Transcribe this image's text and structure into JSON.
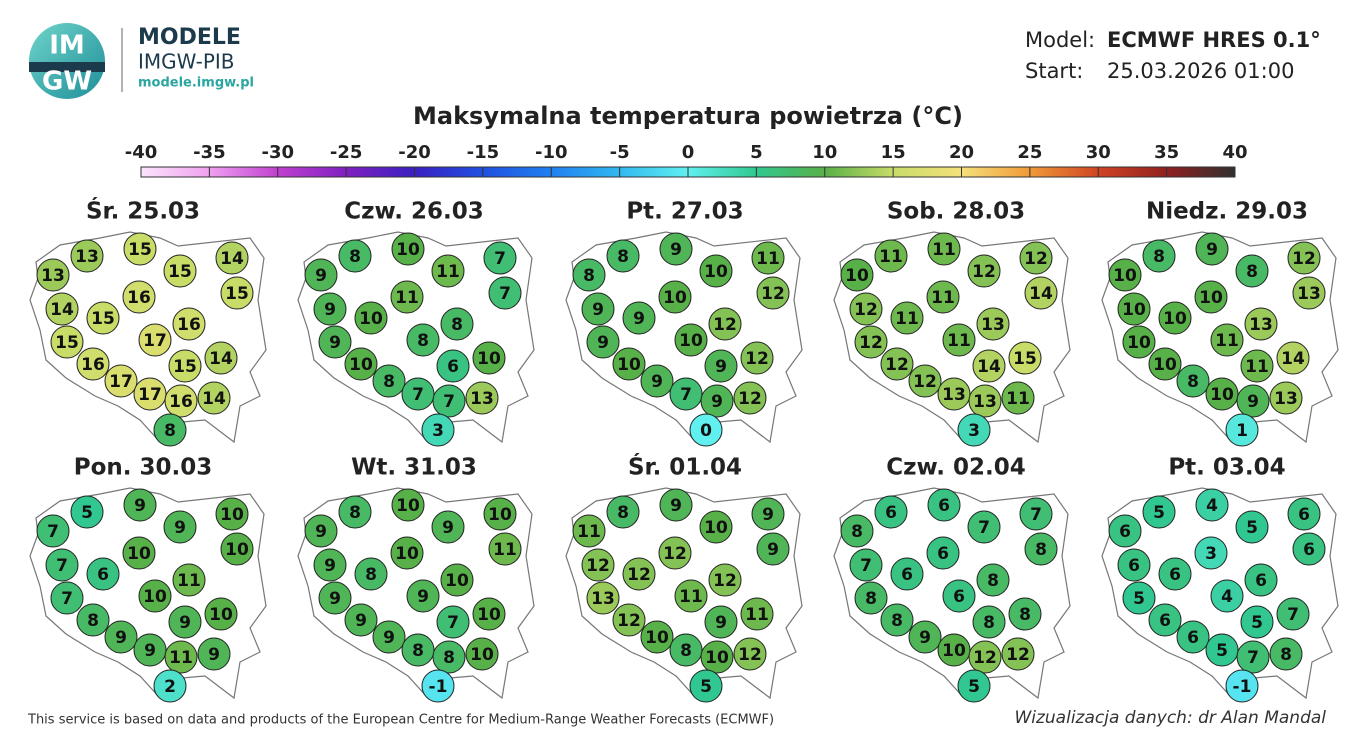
{
  "header": {
    "logo": [
      "IM",
      "GW"
    ],
    "brand": "MODELE",
    "org": "IMGW-PIB",
    "url": "modele.imgw.pl"
  },
  "model": {
    "model_label": "Model:",
    "model": "ECMWF HRES 0.1°",
    "start_label": "Start:",
    "start": "25.03.2026 01:00"
  },
  "title": "Maksymalna temperatura powietrza (°C)",
  "colorbar": {
    "ticks": [
      -40,
      -35,
      -30,
      -25,
      -20,
      -15,
      -10,
      -5,
      0,
      5,
      10,
      15,
      20,
      25,
      30,
      35,
      40
    ],
    "colors": [
      "#fbe4fb",
      "#f0a0f0",
      "#c040d0",
      "#8020c0",
      "#3a20c0",
      "#2050e0",
      "#2080f0",
      "#30b8f0",
      "#60f0f0",
      "#30c890",
      "#58b048",
      "#c8dc68",
      "#f5e07a",
      "#f09a38",
      "#d04424",
      "#902020",
      "#303030"
    ]
  },
  "maps": [
    {
      "title": "Śr. 25.03",
      "values": [
        13,
        15,
        13,
        15,
        14,
        16,
        15,
        14,
        15,
        16,
        15,
        17,
        14,
        16,
        15,
        17,
        17,
        16,
        14,
        8
      ]
    },
    {
      "title": "Czw. 26.03",
      "values": [
        8,
        10,
        9,
        11,
        7,
        11,
        7,
        9,
        10,
        8,
        9,
        8,
        10,
        10,
        6,
        8,
        7,
        7,
        13,
        3
      ]
    },
    {
      "title": "Pt. 27.03",
      "values": [
        8,
        9,
        8,
        10,
        11,
        10,
        12,
        9,
        9,
        12,
        9,
        10,
        12,
        10,
        9,
        9,
        7,
        9,
        12,
        0
      ]
    },
    {
      "title": "Sob. 28.03",
      "values": [
        11,
        11,
        10,
        12,
        12,
        11,
        14,
        12,
        11,
        13,
        12,
        11,
        15,
        12,
        14,
        12,
        13,
        13,
        11,
        3
      ]
    },
    {
      "title": "Niedz. 29.03",
      "values": [
        8,
        9,
        10,
        8,
        12,
        10,
        13,
        10,
        10,
        13,
        10,
        11,
        14,
        10,
        11,
        8,
        10,
        9,
        13,
        1
      ]
    },
    {
      "title": "Pon. 30.03",
      "values": [
        5,
        9,
        7,
        9,
        10,
        10,
        10,
        7,
        6,
        11,
        7,
        10,
        10,
        8,
        9,
        9,
        9,
        11,
        9,
        2
      ]
    },
    {
      "title": "Wt. 31.03",
      "values": [
        8,
        10,
        9,
        9,
        10,
        10,
        11,
        9,
        8,
        10,
        9,
        9,
        10,
        9,
        7,
        9,
        8,
        8,
        10,
        -1
      ]
    },
    {
      "title": "Śr. 01.04",
      "values": [
        8,
        9,
        11,
        10,
        9,
        12,
        9,
        12,
        12,
        12,
        13,
        11,
        11,
        12,
        9,
        10,
        8,
        10,
        12,
        5
      ]
    },
    {
      "title": "Czw. 02.04",
      "values": [
        6,
        6,
        8,
        7,
        7,
        6,
        8,
        7,
        6,
        8,
        8,
        6,
        8,
        8,
        8,
        9,
        10,
        12,
        12,
        5
      ]
    },
    {
      "title": "Pt. 03.04",
      "values": [
        5,
        4,
        6,
        5,
        6,
        3,
        6,
        6,
        6,
        6,
        5,
        4,
        7,
        6,
        5,
        6,
        5,
        7,
        8,
        -1
      ]
    }
  ],
  "footer": {
    "source": "This service is based on data and products of the European Centre for Medium-Range Weather Forecasts (ECMWF)",
    "credit": "Wizualizacja danych: dr Alan Mandal"
  }
}
